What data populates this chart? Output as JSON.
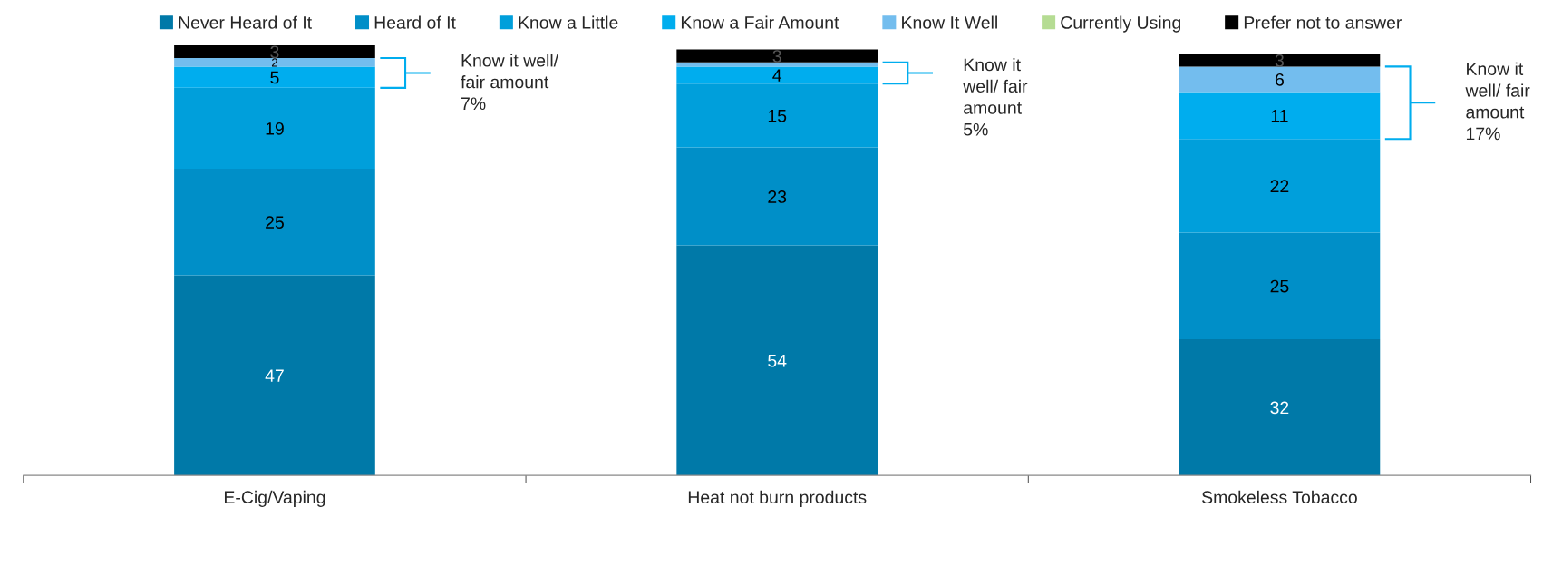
{
  "chart_data": {
    "type": "bar",
    "stacked": true,
    "categories": [
      "E-Cig/Vaping",
      "Heat not burn products",
      "Smokeless Tobacco"
    ],
    "series": [
      {
        "name": "Never Heard of It",
        "color": "#0079a8",
        "values": [
          47,
          54,
          32
        ],
        "value_labels": [
          "47",
          "54",
          "32"
        ]
      },
      {
        "name": "Heard of It",
        "color": "#008fc8",
        "values": [
          25,
          23,
          25
        ],
        "value_labels": [
          "25",
          "23",
          "25"
        ]
      },
      {
        "name": "Know a Little",
        "color": "#009fdb",
        "values": [
          19,
          15,
          22
        ],
        "value_labels": [
          "19",
          "15",
          "22"
        ]
      },
      {
        "name": "Know a Fair Amount",
        "color": "#00adee",
        "values": [
          5,
          4,
          11
        ],
        "value_labels": [
          "5",
          "4",
          "11"
        ]
      },
      {
        "name": "Know It Well",
        "color": "#73bdee",
        "values": [
          2,
          1,
          6
        ],
        "value_labels": [
          "2",
          null,
          "6"
        ]
      },
      {
        "name": "Currently Using",
        "color": "#b5dc93",
        "values": [
          0,
          0,
          0
        ],
        "value_labels": [
          null,
          null,
          null
        ]
      },
      {
        "name": "Prefer not to answer",
        "color": "#000000",
        "values": [
          3,
          3,
          3
        ],
        "value_labels": [
          "3",
          "3",
          "3"
        ]
      }
    ],
    "annotations": [
      "Know it well/\nfair amount\n7%",
      "Know it\nwell/ fair\namount\n5%",
      "Know it\nwell/ fair\namount\n17%"
    ],
    "legend": "top",
    "grid": false
  }
}
